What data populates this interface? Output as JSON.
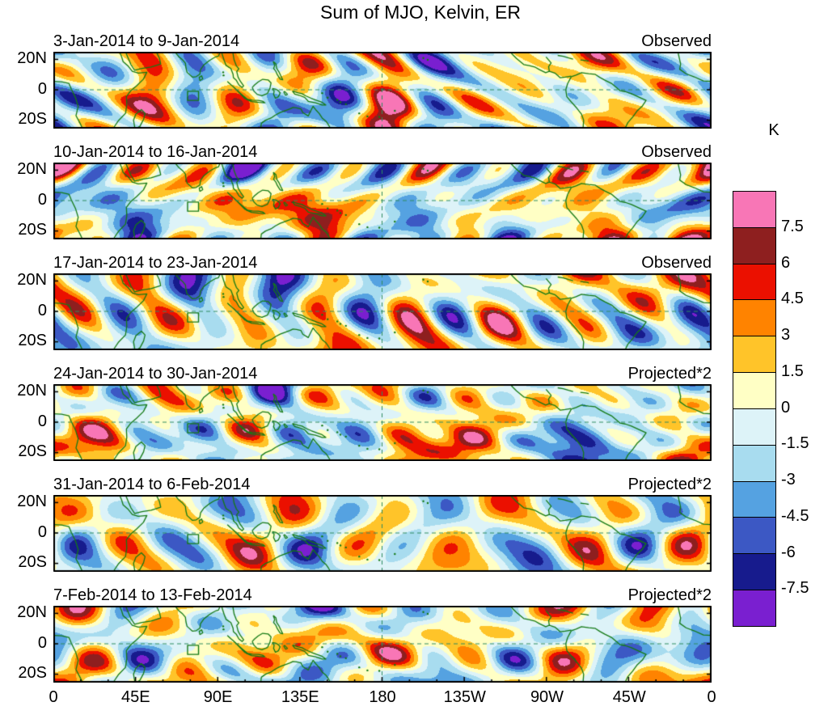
{
  "title": "Sum of MJO, Kelvin, ER",
  "panels": [
    {
      "date_range": "3-Jan-2014 to 9-Jan-2014",
      "type": "Observed"
    },
    {
      "date_range": "10-Jan-2014 to 16-Jan-2014",
      "type": "Observed"
    },
    {
      "date_range": "17-Jan-2014 to 23-Jan-2014",
      "type": "Observed"
    },
    {
      "date_range": "24-Jan-2014 to 30-Jan-2014",
      "type": "Projected*2"
    },
    {
      "date_range": "31-Jan-2014 to 6-Feb-2014",
      "type": "Projected*2"
    },
    {
      "date_range": "7-Feb-2014 to 13-Feb-2014",
      "type": "Projected*2"
    }
  ],
  "y_axis": {
    "tick_labels": [
      "20N",
      "0",
      "20S"
    ]
  },
  "x_axis": {
    "tick_labels": [
      "0",
      "45E",
      "90E",
      "135E",
      "180",
      "135W",
      "90W",
      "45W",
      "0"
    ]
  },
  "colorbar": {
    "unit": "K",
    "tick_labels": [
      "7.5",
      "6",
      "4.5",
      "3",
      "1.5",
      "0",
      "-1.5",
      "-3",
      "-4.5",
      "-6",
      "-7.5"
    ],
    "colors_top_to_bottom": [
      "#F876B6",
      "#8E1F1F",
      "#EB1000",
      "#FF8300",
      "#FFC429",
      "#FFFFC5",
      "#DDF3F8",
      "#A8DCEF",
      "#55A2E1",
      "#3C58C4",
      "#171B8D",
      "#7A1FD0"
    ]
  },
  "chart_data": {
    "type": "heatmap",
    "title": "Sum of MJO, Kelvin, ER",
    "unit": "K",
    "contour_levels": [
      -7.5,
      -6,
      -4.5,
      -3,
      -1.5,
      0,
      1.5,
      3,
      4.5,
      6,
      7.5
    ],
    "lon_range": [
      0,
      360
    ],
    "lat_range": [
      -25,
      25
    ],
    "lon_ticks_deg_east": [
      0,
      45,
      90,
      135,
      180,
      225,
      270,
      315,
      360
    ],
    "lon_tick_labels": [
      "0",
      "45E",
      "90E",
      "135E",
      "180",
      "135W",
      "90W",
      "45W",
      "0"
    ],
    "lat_ticks": [
      20,
      0,
      -20
    ],
    "lat_tick_labels": [
      "20N",
      "0",
      "20S"
    ],
    "legend_position": "right",
    "grid": "dashed reference lines at equator and 180 meridian in every panel",
    "panels": [
      {
        "date_range": "3-Jan-2014 to 9-Jan-2014",
        "source": "Observed"
      },
      {
        "date_range": "10-Jan-2014 to 16-Jan-2014",
        "source": "Observed"
      },
      {
        "date_range": "17-Jan-2014 to 23-Jan-2014",
        "source": "Observed"
      },
      {
        "date_range": "24-Jan-2014 to 30-Jan-2014",
        "source": "Projected*2"
      },
      {
        "date_range": "31-Jan-2014 to 6-Feb-2014",
        "source": "Projected*2"
      },
      {
        "date_range": "7-Feb-2014 to 13-Feb-2014",
        "source": "Projected*2"
      }
    ]
  },
  "map": {
    "coastline_color": "#157A15",
    "reference_line_color": "#2F8B60"
  }
}
